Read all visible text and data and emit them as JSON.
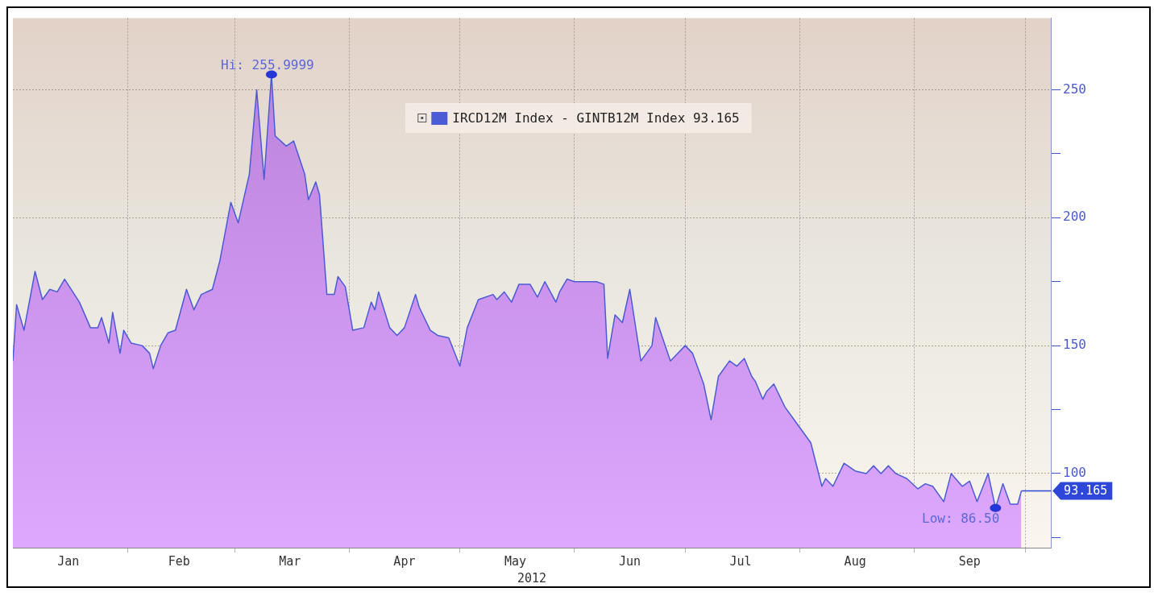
{
  "chart_data": {
    "type": "area",
    "xlabel": "2012",
    "legend": "top",
    "series": [
      {
        "name": "IRCD12M Index - GINTB12M Index 93.165",
        "color": "#4b5bd6",
        "x": [
          "2012-01-01",
          "2012-01-02",
          "2012-01-04",
          "2012-01-07",
          "2012-01-09",
          "2012-01-11",
          "2012-01-13",
          "2012-01-15",
          "2012-01-19",
          "2012-01-22",
          "2012-01-24",
          "2012-01-25",
          "2012-01-27",
          "2012-01-28",
          "2012-01-30",
          "2012-01-31",
          "2012-02-02",
          "2012-02-05",
          "2012-02-07",
          "2012-02-08",
          "2012-02-10",
          "2012-02-12",
          "2012-02-14",
          "2012-02-17",
          "2012-02-19",
          "2012-02-21",
          "2012-02-24",
          "2012-02-26",
          "2012-02-29",
          "2012-03-02",
          "2012-03-05",
          "2012-03-07",
          "2012-03-09",
          "2012-03-11",
          "2012-03-12",
          "2012-03-15",
          "2012-03-17",
          "2012-03-20",
          "2012-03-21",
          "2012-03-23",
          "2012-03-24",
          "2012-03-26",
          "2012-03-28",
          "2012-03-29",
          "2012-03-31",
          "2012-04-02",
          "2012-04-05",
          "2012-04-07",
          "2012-04-08",
          "2012-04-09",
          "2012-04-12",
          "2012-04-14",
          "2012-04-16",
          "2012-04-19",
          "2012-04-20",
          "2012-04-23",
          "2012-04-25",
          "2012-04-28",
          "2012-05-01",
          "2012-05-03",
          "2012-05-06",
          "2012-05-10",
          "2012-05-11",
          "2012-05-13",
          "2012-05-15",
          "2012-05-17",
          "2012-05-20",
          "2012-05-22",
          "2012-05-24",
          "2012-05-27",
          "2012-05-28",
          "2012-05-30",
          "2012-06-01",
          "2012-06-07",
          "2012-06-09",
          "2012-06-10",
          "2012-06-12",
          "2012-06-14",
          "2012-06-16",
          "2012-06-19",
          "2012-06-22",
          "2012-06-23",
          "2012-06-27",
          "2012-07-01",
          "2012-07-03",
          "2012-07-06",
          "2012-07-08",
          "2012-07-10",
          "2012-07-13",
          "2012-07-15",
          "2012-07-17",
          "2012-07-19",
          "2012-07-20",
          "2012-07-22",
          "2012-07-23",
          "2012-07-25",
          "2012-07-28",
          "2012-08-01",
          "2012-08-04",
          "2012-08-07",
          "2012-08-08",
          "2012-08-10",
          "2012-08-13",
          "2012-08-16",
          "2012-08-19",
          "2012-08-21",
          "2012-08-23",
          "2012-08-25",
          "2012-08-27",
          "2012-08-30",
          "2012-09-02",
          "2012-09-04",
          "2012-09-06",
          "2012-09-09",
          "2012-09-11",
          "2012-09-14",
          "2012-09-16",
          "2012-09-18",
          "2012-09-21",
          "2012-09-23",
          "2012-09-25",
          "2012-09-27",
          "2012-09-29",
          "2012-09-30"
        ],
        "values": [
          144,
          166,
          156,
          179,
          168,
          172,
          171,
          176,
          167,
          157,
          157,
          161,
          151,
          163,
          147,
          156,
          151,
          150,
          147,
          141,
          150,
          155,
          156,
          172,
          164,
          170,
          172,
          183,
          206,
          198,
          217,
          250,
          215,
          255.9999,
          232,
          228,
          230,
          217,
          207,
          214,
          209,
          170,
          170,
          177,
          173,
          156,
          157,
          167,
          164,
          171,
          157,
          154,
          157,
          170,
          165,
          156,
          154,
          153,
          142,
          157,
          168,
          170,
          168,
          171,
          167,
          174,
          174,
          169,
          175,
          167,
          171,
          176,
          175,
          175,
          174,
          145,
          162,
          159,
          172,
          144,
          150,
          161,
          144,
          150,
          147,
          135,
          121,
          138,
          144,
          142,
          145,
          138,
          136,
          129,
          132,
          135,
          126,
          118,
          112,
          95,
          98,
          95,
          104,
          101,
          100,
          103,
          100,
          103,
          100,
          98,
          94,
          96,
          95,
          89,
          100,
          95,
          97,
          89,
          100,
          86.5,
          96,
          88,
          88,
          93.165
        ]
      }
    ],
    "ylim": [
      71,
      278
    ],
    "yticks": [
      {
        "value": 75,
        "label": null
      },
      100,
      {
        "value": 125,
        "label": null
      },
      150,
      {
        "value": 175,
        "label": null
      },
      200,
      {
        "value": 225,
        "label": null
      },
      250
    ],
    "xlim": [
      "2012-01-01",
      "2012-10-08"
    ],
    "xticks": [
      {
        "value": "2012-02-01",
        "label": null
      },
      {
        "value": "2012-03-01",
        "label": null
      },
      {
        "value": "2012-04-01",
        "label": null
      },
      {
        "value": "2012-05-01",
        "label": null
      },
      {
        "value": "2012-06-01",
        "label": null
      },
      {
        "value": "2012-07-01",
        "label": null
      },
      {
        "value": "2012-08-01",
        "label": null
      },
      {
        "value": "2012-09-01",
        "label": null
      },
      {
        "value": "2012-10-01",
        "label": null
      },
      {
        "value": "2012-01-16",
        "label": "Jan"
      },
      {
        "value": "2012-02-15",
        "label": "Feb"
      },
      {
        "value": "2012-03-16",
        "label": "Mar"
      },
      {
        "value": "2012-04-16",
        "label": "Apr"
      },
      {
        "value": "2012-05-16",
        "label": "May"
      },
      {
        "value": "2012-06-16",
        "label": "Jun"
      },
      {
        "value": "2012-07-16",
        "label": "Jul"
      },
      {
        "value": "2012-08-16",
        "label": "Aug"
      },
      {
        "value": "2012-09-16",
        "label": "Sep"
      }
    ],
    "grid": true,
    "marker": "none",
    "line_style": "solid",
    "ref_lines": [
      {
        "axis": "y",
        "value": 93.165,
        "label": "93.165",
        "color": "#2f47d8"
      }
    ],
    "annotations": [
      {
        "text": "Hi: 255.9999",
        "x": "2012-03-11",
        "y": 255.9999
      },
      {
        "text": "Low: 86.50",
        "x": "2012-09-23",
        "y": 86.5
      }
    ]
  }
}
